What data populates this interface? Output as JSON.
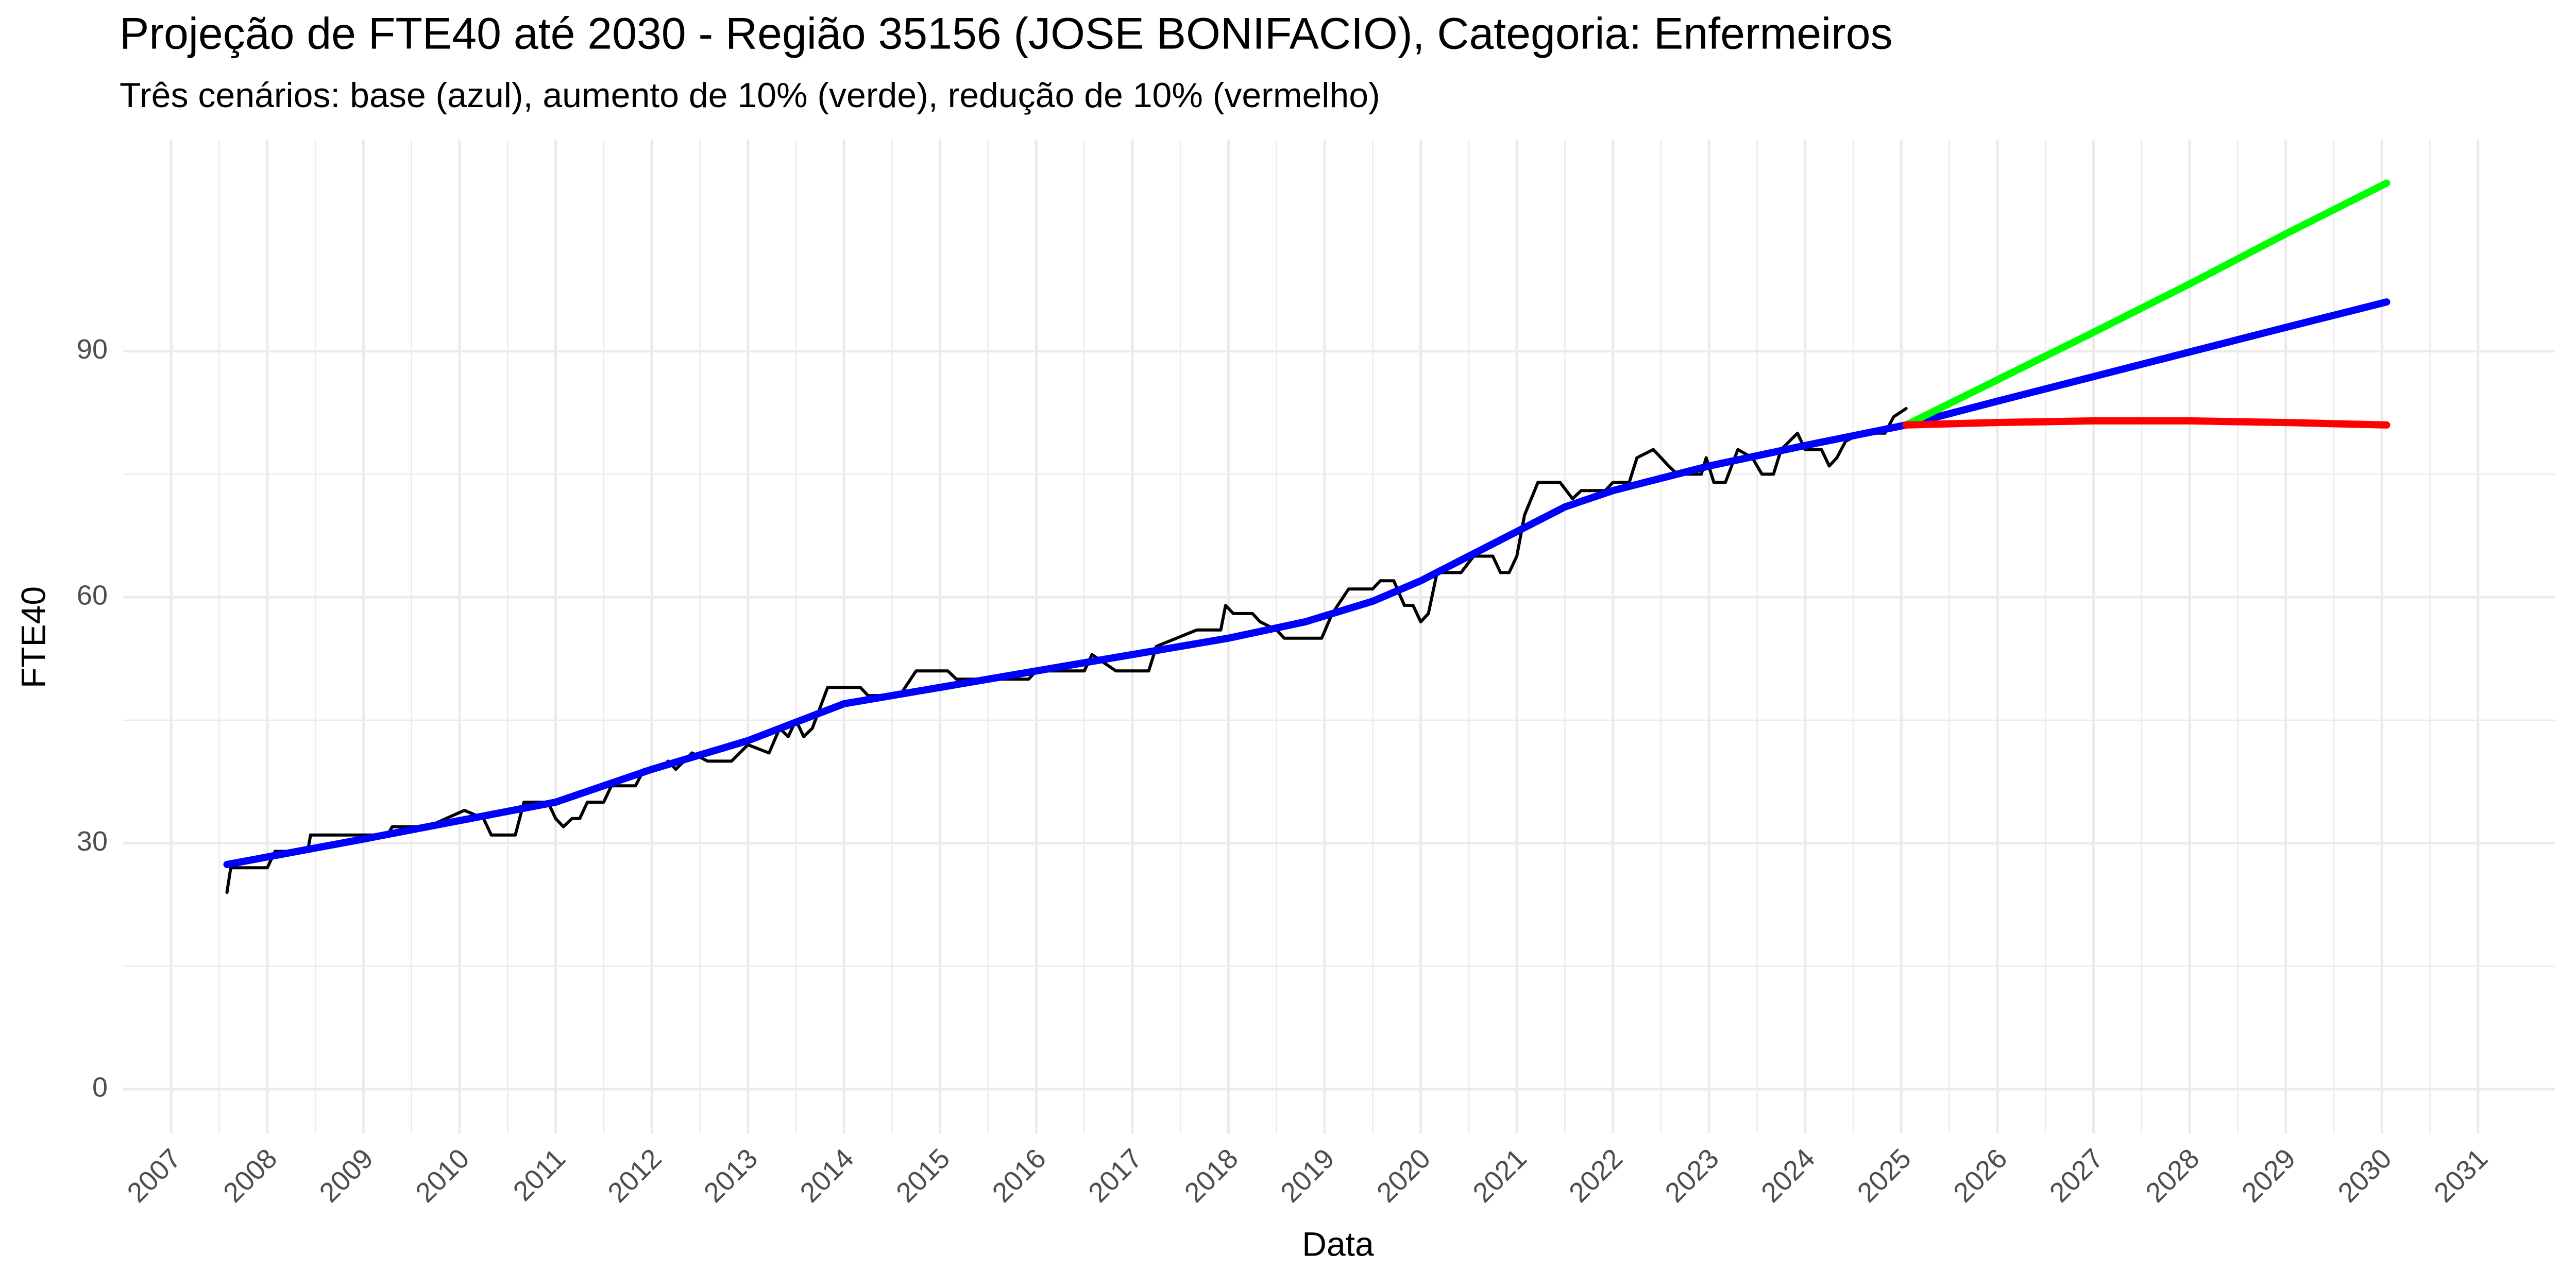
{
  "chart_data": {
    "type": "line",
    "title": "Projeção de FTE40 até 2030 - Região 35156 (JOSE BONIFACIO), Categoria: Enfermeiros",
    "subtitle": "Três cenários: base (azul), aumento de 10% (verde), redução de 10% (vermelho)",
    "x_label": "Data",
    "y_label": "FTE40",
    "xlim": [
      2006.5,
      2031.8
    ],
    "ylim": [
      -5.4,
      115.8
    ],
    "xticks": [
      2007,
      2008,
      2009,
      2010,
      2011,
      2012,
      2013,
      2014,
      2015,
      2016,
      2017,
      2018,
      2019,
      2020,
      2021,
      2022,
      2023,
      2024,
      2025,
      2026,
      2027,
      2028,
      2029,
      2030,
      2031
    ],
    "yticks": [
      0,
      30,
      60,
      90
    ],
    "grid": true,
    "series": [
      {
        "color": "#000000",
        "x": [
          2007.58,
          2007.62,
          2008.0,
          2008.08,
          2008.42,
          2008.45,
          2009.25,
          2009.3,
          2009.67,
          2010.05,
          2010.25,
          2010.33,
          2010.58,
          2010.67,
          2010.92,
          2011.0,
          2011.08,
          2011.17,
          2011.25,
          2011.33,
          2011.5,
          2011.58,
          2011.83,
          2011.92,
          2012.08,
          2012.17,
          2012.25,
          2012.42,
          2012.58,
          2012.83,
          2013.0,
          2013.22,
          2013.33,
          2013.42,
          2013.5,
          2013.58,
          2013.67,
          2013.83,
          2014.17,
          2014.25,
          2014.58,
          2014.75,
          2015.08,
          2015.17,
          2015.92,
          2016.0,
          2016.5,
          2016.58,
          2016.83,
          2017.17,
          2017.25,
          2017.67,
          2017.92,
          2017.97,
          2018.05,
          2018.25,
          2018.33,
          2018.5,
          2018.58,
          2018.97,
          2019.08,
          2019.25,
          2019.5,
          2019.58,
          2019.72,
          2019.83,
          2019.92,
          2020.0,
          2020.08,
          2020.17,
          2020.42,
          2020.55,
          2020.75,
          2020.83,
          2020.92,
          2021.0,
          2021.08,
          2021.22,
          2021.45,
          2021.58,
          2021.67,
          2021.92,
          2022.0,
          2022.17,
          2022.25,
          2022.42,
          2022.58,
          2022.67,
          2022.92,
          2022.97,
          2023.05,
          2023.17,
          2023.3,
          2023.45,
          2023.55,
          2023.67,
          2023.75,
          2023.92,
          2024.0,
          2024.17,
          2024.25,
          2024.33,
          2024.42,
          2024.58,
          2024.83,
          2024.92,
          2025.05
        ],
        "values": [
          24,
          27,
          27,
          29,
          29,
          31,
          31,
          32,
          32,
          34,
          33,
          31,
          31,
          35,
          35,
          33,
          32,
          33,
          33,
          35,
          35,
          37,
          37,
          39,
          39,
          40,
          39,
          41,
          40,
          40,
          42,
          41,
          44,
          43,
          45,
          43,
          44,
          49,
          49,
          48,
          48,
          51,
          51,
          50,
          50,
          51,
          51,
          53,
          51,
          51,
          54,
          56,
          56,
          59,
          58,
          58,
          57,
          56,
          55,
          55,
          58,
          61,
          61,
          62,
          62,
          59,
          59,
          57,
          58,
          63,
          63,
          65,
          65,
          63,
          63,
          65,
          70,
          74,
          74,
          72,
          73,
          73,
          74,
          74,
          77,
          78,
          76,
          75,
          75,
          77,
          74,
          74,
          78,
          77,
          75,
          75,
          78,
          80,
          78,
          78,
          76,
          77,
          79,
          80,
          80,
          82,
          83
        ]
      },
      {
        "color": "#0000ff",
        "x": [
          2007.58,
          2009,
          2011,
          2012,
          2013,
          2014,
          2015,
          2016,
          2017,
          2018,
          2018.8,
          2019.5,
          2020,
          2021,
          2021.5,
          2022,
          2023,
          2024,
          2025.05,
          2026,
          2027,
          2028,
          2029,
          2030.05
        ],
        "values": [
          27.4,
          30.5,
          35,
          39,
          42.5,
          47,
          49,
          51,
          53,
          55,
          57,
          59.5,
          62,
          68,
          71,
          73,
          76,
          78.5,
          81,
          83.9,
          86.9,
          89.9,
          92.9,
          96
        ]
      },
      {
        "color": "#00ff00",
        "x": [
          2025.05,
          2026,
          2027,
          2028,
          2029,
          2030.05
        ],
        "values": [
          81,
          86.5,
          92.3,
          98.2,
          104.3,
          110.5
        ]
      },
      {
        "color": "#ff0000",
        "x": [
          2025.05,
          2026,
          2027,
          2028,
          2029,
          2030.05
        ],
        "values": [
          81,
          81.3,
          81.5,
          81.5,
          81.3,
          81
        ]
      }
    ]
  }
}
